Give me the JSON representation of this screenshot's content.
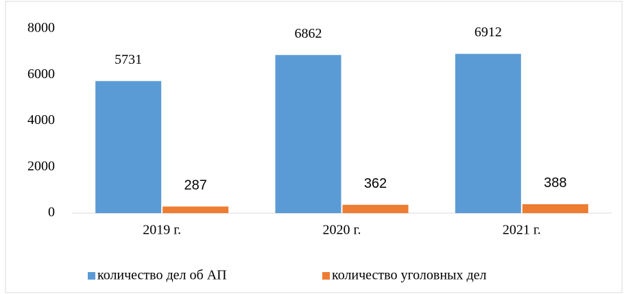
{
  "chart_data": {
    "type": "bar",
    "categories": [
      "2019 г.",
      "2020 г.",
      "2021 г."
    ],
    "series": [
      {
        "name": "количество дел об АП",
        "color": "#5b9bd5",
        "values": [
          5731,
          6862,
          6912
        ]
      },
      {
        "name": "количество уголовных дел",
        "color": "#ed7d31",
        "values": [
          287,
          362,
          388
        ]
      }
    ],
    "ylim": [
      0,
      8000
    ],
    "yticks": [
      0,
      2000,
      4000,
      6000,
      8000
    ],
    "grid": false,
    "legend": "bottom"
  }
}
